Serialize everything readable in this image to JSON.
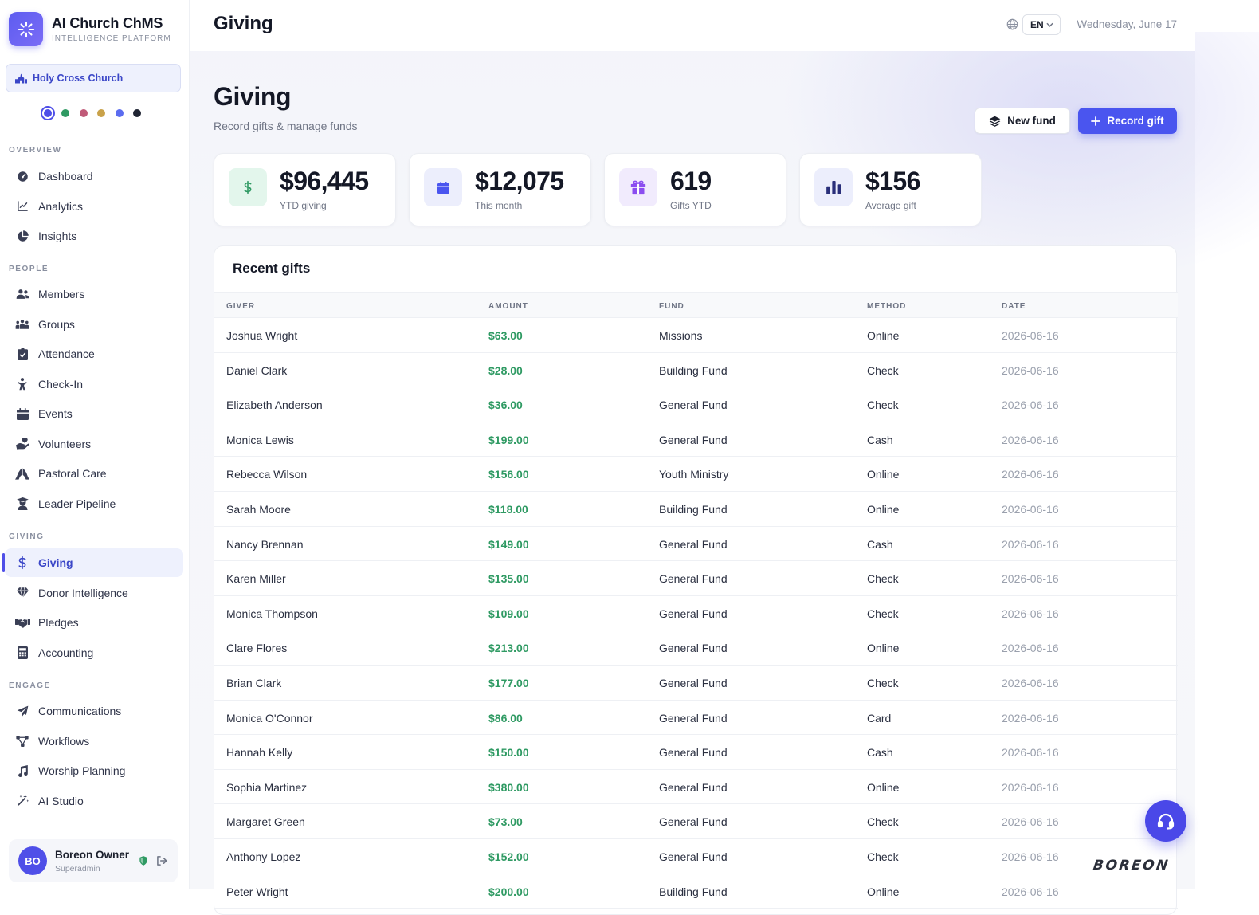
{
  "brand": {
    "title": "AI Church ChMS",
    "subtitle": "INTELLIGENCE PLATFORM"
  },
  "church": {
    "name": "Holy Cross Church"
  },
  "theme_swatches": [
    "#4f4fe8",
    "#2f9a63",
    "#c05a78",
    "#c9a24a",
    "#5b6cf0",
    "#1f2433"
  ],
  "nav": {
    "sections": [
      {
        "label": "OVERVIEW",
        "items": [
          {
            "label": "Dashboard",
            "icon": "gauge-icon"
          },
          {
            "label": "Analytics",
            "icon": "line-chart-icon"
          },
          {
            "label": "Insights",
            "icon": "pie-chart-icon"
          }
        ]
      },
      {
        "label": "PEOPLE",
        "items": [
          {
            "label": "Members",
            "icon": "users-icon"
          },
          {
            "label": "Groups",
            "icon": "people-group-icon"
          },
          {
            "label": "Attendance",
            "icon": "clipboard-check-icon"
          },
          {
            "label": "Check-In",
            "icon": "child-icon"
          },
          {
            "label": "Events",
            "icon": "calendar-icon"
          },
          {
            "label": "Volunteers",
            "icon": "hand-heart-icon"
          },
          {
            "label": "Pastoral Care",
            "icon": "praying-hands-icon"
          },
          {
            "label": "Leader Pipeline",
            "icon": "graduate-icon"
          }
        ]
      },
      {
        "label": "GIVING",
        "items": [
          {
            "label": "Giving",
            "icon": "dollar-icon",
            "active": true
          },
          {
            "label": "Donor Intelligence",
            "icon": "gem-icon"
          },
          {
            "label": "Pledges",
            "icon": "handshake-icon"
          },
          {
            "label": "Accounting",
            "icon": "calculator-icon"
          }
        ]
      },
      {
        "label": "ENGAGE",
        "items": [
          {
            "label": "Communications",
            "icon": "paper-plane-icon"
          },
          {
            "label": "Workflows",
            "icon": "workflow-icon"
          },
          {
            "label": "Worship Planning",
            "icon": "music-icon"
          },
          {
            "label": "AI Studio",
            "icon": "magic-wand-icon"
          }
        ]
      }
    ]
  },
  "user": {
    "initials": "BO",
    "name": "Boreon Owner",
    "role": "Superadmin"
  },
  "topbar": {
    "title": "Giving",
    "language": "EN",
    "date": "Wednesday, June 17"
  },
  "page": {
    "title": "Giving",
    "subtitle": "Record gifts & manage funds"
  },
  "actions": {
    "new_fund": "New fund",
    "record_gift": "Record gift"
  },
  "stats": [
    {
      "value": "$96,445",
      "label": "YTD giving",
      "icon": "dollar-icon",
      "bg": "#e3f6ec",
      "fg": "#2f9a63"
    },
    {
      "value": "$12,075",
      "label": "This month",
      "icon": "calendar-icon",
      "bg": "#eceefc",
      "fg": "#4a55ef"
    },
    {
      "value": "619",
      "label": "Gifts YTD",
      "icon": "gift-icon",
      "bg": "#f1ebfd",
      "fg": "#8b4df0"
    },
    {
      "value": "$156",
      "label": "Average gift",
      "icon": "bar-chart-icon",
      "bg": "#eceefc",
      "fg": "#2a2f7a"
    }
  ],
  "table": {
    "title": "Recent gifts",
    "columns": [
      "GIVER",
      "AMOUNT",
      "FUND",
      "METHOD",
      "DATE"
    ],
    "rows": [
      [
        "Joshua Wright",
        "$63.00",
        "Missions",
        "Online",
        "2026-06-16"
      ],
      [
        "Daniel Clark",
        "$28.00",
        "Building Fund",
        "Check",
        "2026-06-16"
      ],
      [
        "Elizabeth Anderson",
        "$36.00",
        "General Fund",
        "Check",
        "2026-06-16"
      ],
      [
        "Monica Lewis",
        "$199.00",
        "General Fund",
        "Cash",
        "2026-06-16"
      ],
      [
        "Rebecca Wilson",
        "$156.00",
        "Youth Ministry",
        "Online",
        "2026-06-16"
      ],
      [
        "Sarah Moore",
        "$118.00",
        "Building Fund",
        "Online",
        "2026-06-16"
      ],
      [
        "Nancy Brennan",
        "$149.00",
        "General Fund",
        "Cash",
        "2026-06-16"
      ],
      [
        "Karen Miller",
        "$135.00",
        "General Fund",
        "Check",
        "2026-06-16"
      ],
      [
        "Monica Thompson",
        "$109.00",
        "General Fund",
        "Check",
        "2026-06-16"
      ],
      [
        "Clare Flores",
        "$213.00",
        "General Fund",
        "Online",
        "2026-06-16"
      ],
      [
        "Brian Clark",
        "$177.00",
        "General Fund",
        "Check",
        "2026-06-16"
      ],
      [
        "Monica O'Connor",
        "$86.00",
        "General Fund",
        "Card",
        "2026-06-16"
      ],
      [
        "Hannah Kelly",
        "$150.00",
        "General Fund",
        "Cash",
        "2026-06-16"
      ],
      [
        "Sophia Martinez",
        "$380.00",
        "General Fund",
        "Online",
        "2026-06-16"
      ],
      [
        "Margaret Green",
        "$73.00",
        "General Fund",
        "Check",
        "2026-06-16"
      ],
      [
        "Anthony Lopez",
        "$152.00",
        "General Fund",
        "Check",
        "2026-06-16"
      ],
      [
        "Peter Wright",
        "$200.00",
        "Building Fund",
        "Online",
        "2026-06-16"
      ]
    ]
  },
  "watermark": "BOREON"
}
